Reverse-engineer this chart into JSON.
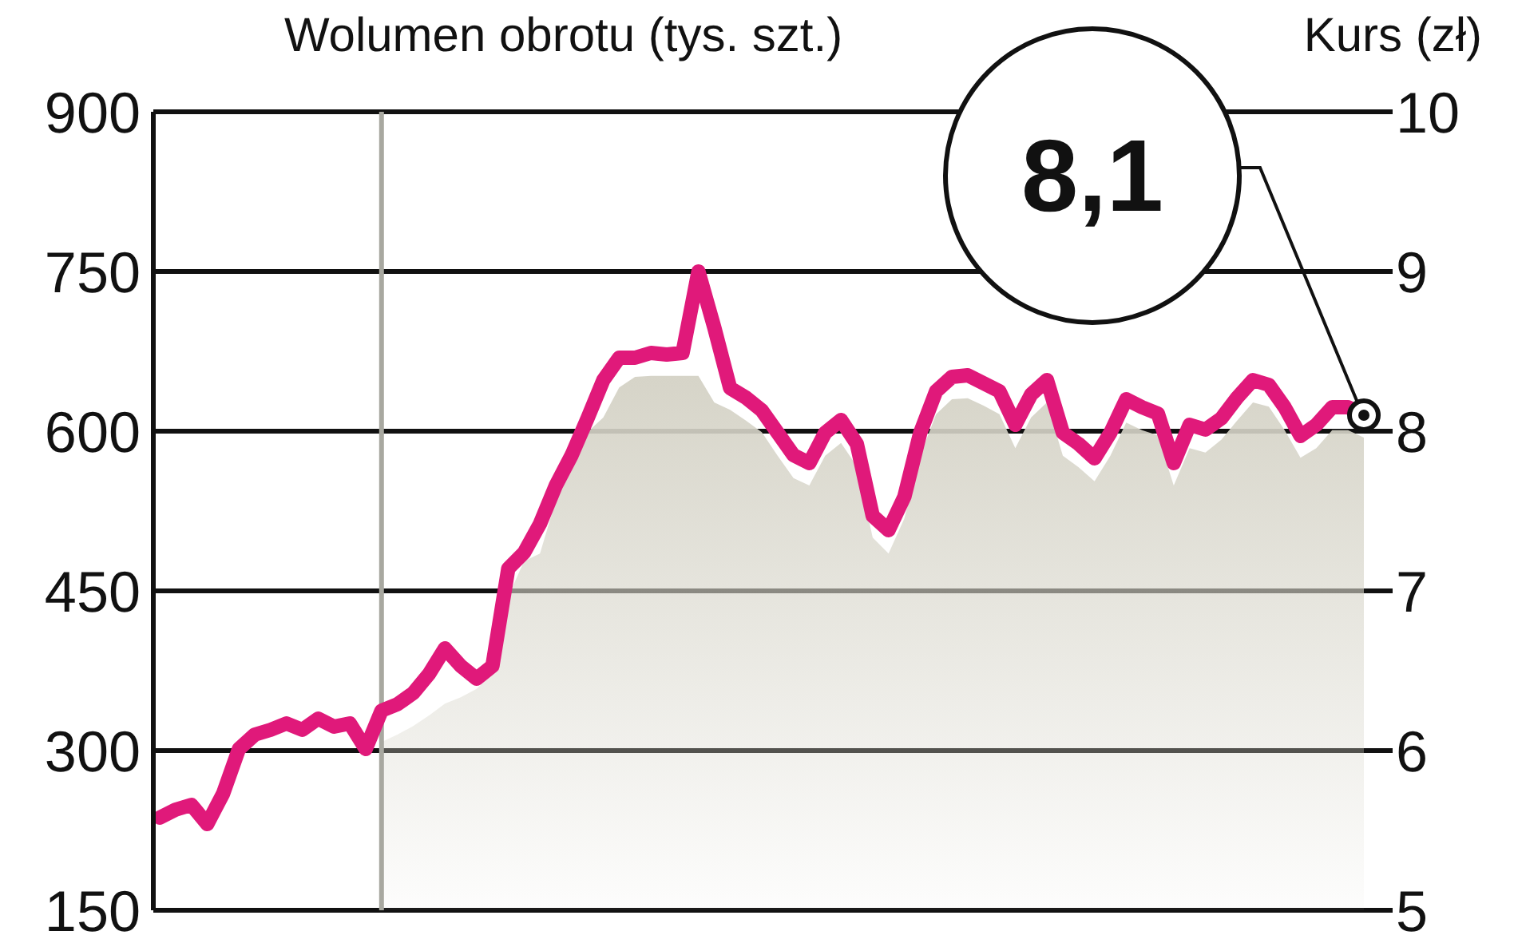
{
  "chart_data": {
    "type": "line",
    "ylabel": "Wolumen obrotu (tys. szt.)",
    "y2label": "Kurs (zł)",
    "categories": [
      null,
      null,
      null,
      null,
      null,
      null,
      null,
      null,
      null,
      null,
      null,
      null,
      null,
      null,
      null,
      null,
      null,
      null,
      null,
      null,
      null,
      null,
      null,
      null,
      null,
      null,
      null,
      null,
      null,
      null,
      null,
      null,
      null,
      null,
      null,
      null,
      null,
      null,
      null,
      null,
      null,
      null,
      null,
      null,
      null,
      null,
      null,
      null,
      null,
      null,
      null,
      null,
      null,
      null,
      null,
      null,
      null,
      null,
      null,
      null,
      null,
      null,
      null,
      null,
      null,
      null,
      null,
      null,
      null,
      null,
      null,
      null,
      null,
      null,
      null,
      null,
      null
    ],
    "series": [
      {
        "type": "area",
        "color": "#d6d4c8",
        "values": [
          null,
          null,
          null,
          null,
          null,
          null,
          null,
          null,
          null,
          null,
          null,
          null,
          null,
          null,
          308,
          315,
          323,
          333,
          344,
          350,
          358,
          372,
          445,
          478,
          485,
          535,
          563,
          599,
          613,
          641,
          651,
          652,
          652,
          652,
          652,
          627,
          620,
          610,
          599,
          577,
          556,
          549,
          577,
          589,
          567,
          500,
          485,
          518,
          577,
          616,
          630,
          631,
          624,
          616,
          584,
          613,
          627,
          577,
          566,
          553,
          577,
          608,
          601,
          596,
          549,
          584,
          580,
          592,
          610,
          627,
          623,
          601,
          575,
          584,
          601,
          601,
          594
        ]
      },
      {
        "axis": "y2",
        "color": "#e0197a",
        "values": [
          5.58,
          5.63,
          5.66,
          5.54,
          5.73,
          6.01,
          6.1,
          6.13,
          6.17,
          6.13,
          6.2,
          6.15,
          6.17,
          6.01,
          6.25,
          6.29,
          6.36,
          6.48,
          6.64,
          6.53,
          6.45,
          6.53,
          7.14,
          7.24,
          7.42,
          7.66,
          7.85,
          8.08,
          8.32,
          8.46,
          8.46,
          8.49,
          8.48,
          8.49,
          9.0,
          8.65,
          8.27,
          8.21,
          8.13,
          7.99,
          7.85,
          7.8,
          7.99,
          8.07,
          7.92,
          7.47,
          7.38,
          7.59,
          7.99,
          8.25,
          8.34,
          8.35,
          8.3,
          8.25,
          8.04,
          8.23,
          8.32,
          7.99,
          7.92,
          7.83,
          7.99,
          8.2,
          8.15,
          8.11,
          7.8,
          8.04,
          8.01,
          8.08,
          8.21,
          8.32,
          8.29,
          8.15,
          7.97,
          8.04,
          8.15,
          8.15,
          8.1
        ]
      }
    ],
    "ylim": [
      150,
      900
    ],
    "yticks": [
      150,
      300,
      450,
      600,
      750,
      900
    ],
    "y2lim": [
      5,
      10
    ],
    "y2ticks": [
      5,
      6,
      7,
      8,
      9,
      10
    ],
    "grid": "y",
    "marker": "none",
    "line_style": "solid",
    "annotations": [
      "8,1"
    ]
  }
}
